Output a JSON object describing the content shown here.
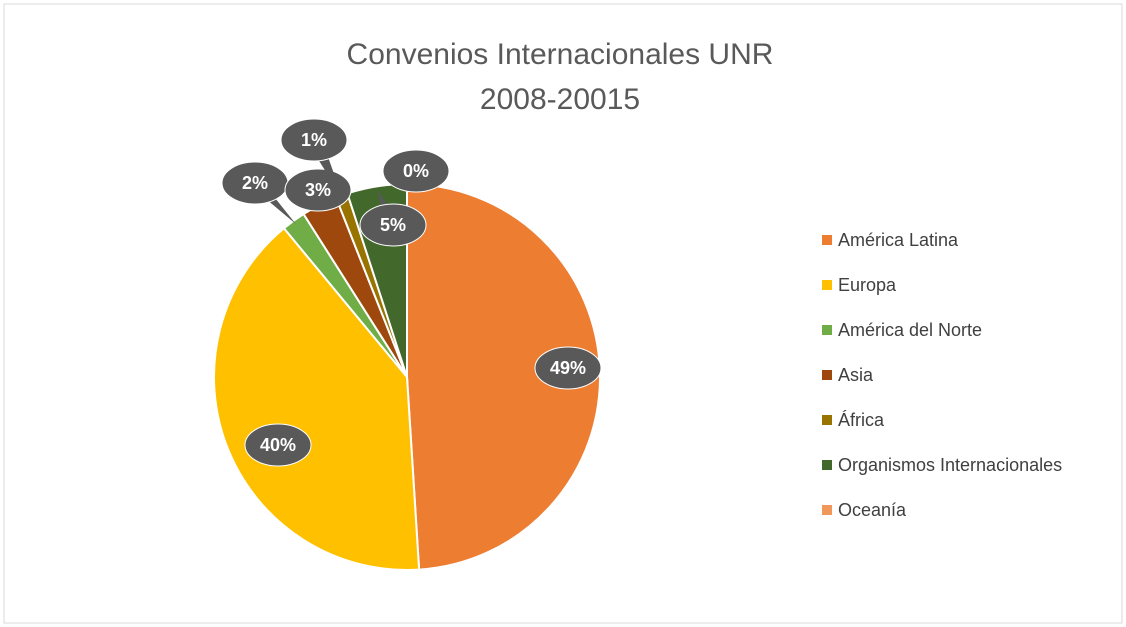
{
  "chart_data": {
    "type": "pie",
    "title": [
      "Convenios Internacionales UNR",
      "2008-20015"
    ],
    "categories": [
      "América Latina",
      "Europa",
      "América del Norte",
      "Asia",
      "África",
      "Organismos Internacionales",
      "Oceanía"
    ],
    "values": [
      49,
      40,
      2,
      3,
      1,
      5,
      0
    ],
    "value_labels": [
      "49%",
      "40%",
      "2%",
      "3%",
      "1%",
      "5%",
      "0%"
    ],
    "colors": [
      "#ed7d31",
      "#ffc000",
      "#70ad47",
      "#9e480e",
      "#997300",
      "#43682b",
      "#f1975a"
    ],
    "legend": "right"
  }
}
